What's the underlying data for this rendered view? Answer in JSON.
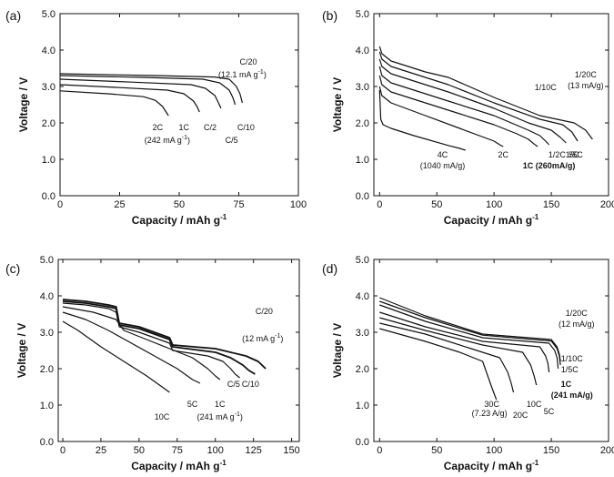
{
  "chart_data": [
    {
      "panel": "(a)",
      "type": "line",
      "xlabel": "Capacity / mAh g",
      "xlabel_sup": "-1",
      "ylabel": "Voltage / V",
      "xlim": [
        0,
        100
      ],
      "ylim": [
        0,
        5
      ],
      "xticks": [
        0,
        25,
        50,
        75,
        100
      ],
      "yticks": [
        0.0,
        1.0,
        2.0,
        3.0,
        4.0,
        5.0
      ],
      "series": [
        {
          "x": [
            0,
            40,
            65,
            71,
            74,
            75.5,
            76.5
          ],
          "y": [
            3.35,
            3.3,
            3.26,
            3.2,
            3.0,
            2.8,
            2.55
          ]
        },
        {
          "x": [
            0,
            35,
            60,
            67,
            71,
            72.5,
            73.5
          ],
          "y": [
            3.3,
            3.25,
            3.2,
            3.1,
            2.9,
            2.7,
            2.5
          ]
        },
        {
          "x": [
            0,
            30,
            55,
            61,
            65,
            66.5,
            67.5
          ],
          "y": [
            3.2,
            3.12,
            3.05,
            2.95,
            2.75,
            2.55,
            2.4
          ]
        },
        {
          "x": [
            0,
            25,
            45,
            52,
            56,
            57.5,
            58.5
          ],
          "y": [
            3.05,
            2.97,
            2.9,
            2.8,
            2.6,
            2.45,
            2.3
          ]
        },
        {
          "x": [
            0,
            20,
            35,
            40,
            43,
            44.5,
            45.5
          ],
          "y": [
            2.88,
            2.8,
            2.72,
            2.62,
            2.45,
            2.3,
            2.2
          ]
        }
      ],
      "annotations": [
        {
          "text": "C/20",
          "x": 79,
          "y": 3.6
        },
        {
          "text": "(12.1 mA g",
          "sup": "-1",
          "tail": ")",
          "x": 76.5,
          "y": 3.25
        },
        {
          "text": "2C",
          "x": 41,
          "y": 1.8
        },
        {
          "text": "1C",
          "x": 52,
          "y": 1.8
        },
        {
          "text": "(242 mA g",
          "sup": "-1",
          "tail": ")",
          "x": 45,
          "y": 1.45
        },
        {
          "text": "C/2",
          "x": 63,
          "y": 1.8
        },
        {
          "text": "C/5",
          "x": 72,
          "y": 1.45
        },
        {
          "text": "C/10",
          "x": 78,
          "y": 1.8
        }
      ]
    },
    {
      "panel": "(b)",
      "type": "line",
      "xlabel": "Capacity / mAh g",
      "xlabel_sup": "-1",
      "ylabel": "Voltage / V",
      "xlim": [
        -5,
        200
      ],
      "ylim": [
        0,
        5
      ],
      "xticks": [
        0,
        50,
        100,
        150,
        200
      ],
      "yticks": [
        0.0,
        1.0,
        2.0,
        3.0,
        4.0,
        5.0
      ],
      "series": [
        {
          "x": [
            0,
            2,
            10,
            40,
            60,
            100,
            140,
            170,
            180,
            186
          ],
          "y": [
            4.1,
            3.9,
            3.7,
            3.4,
            3.25,
            2.7,
            2.2,
            2.0,
            1.8,
            1.55
          ]
        },
        {
          "x": [
            0,
            2,
            10,
            40,
            60,
            100,
            140,
            160,
            168,
            173
          ],
          "y": [
            3.95,
            3.75,
            3.55,
            3.25,
            3.05,
            2.55,
            2.1,
            1.95,
            1.75,
            1.5
          ]
        },
        {
          "x": [
            0,
            2,
            10,
            40,
            60,
            100,
            130,
            150,
            158,
            163
          ],
          "y": [
            3.75,
            3.55,
            3.35,
            3.05,
            2.85,
            2.4,
            2.0,
            1.8,
            1.6,
            1.45
          ]
        },
        {
          "x": [
            0,
            2,
            10,
            40,
            60,
            100,
            130,
            140,
            145,
            148
          ],
          "y": [
            3.55,
            3.3,
            3.1,
            2.8,
            2.6,
            2.2,
            1.8,
            1.65,
            1.5,
            1.4
          ]
        },
        {
          "x": [
            0,
            2,
            10,
            40,
            70,
            100,
            120,
            130,
            135,
            138
          ],
          "y": [
            3.3,
            3.05,
            2.85,
            2.55,
            2.25,
            1.95,
            1.7,
            1.55,
            1.42,
            1.35
          ]
        },
        {
          "x": [
            0,
            2,
            10,
            40,
            70,
            100,
            105,
            108
          ],
          "y": [
            3.0,
            2.75,
            2.55,
            2.2,
            1.85,
            1.5,
            1.4,
            1.35
          ]
        },
        {
          "x": [
            0,
            1,
            3,
            10,
            30,
            60,
            70,
            75
          ],
          "y": [
            2.9,
            2.1,
            1.95,
            1.85,
            1.65,
            1.38,
            1.3,
            1.25
          ]
        }
      ],
      "annotations": [
        {
          "text": "1/10C",
          "x": 145,
          "y": 2.9
        },
        {
          "text": "1/20C",
          "x": 180,
          "y": 3.25
        },
        {
          "text": "(13 mA/g)",
          "x": 180,
          "y": 2.95
        },
        {
          "text": "4C",
          "x": 55,
          "y": 1.05
        },
        {
          "text": "(1040 mA/g)",
          "x": 55,
          "y": 0.75
        },
        {
          "text": "2C",
          "x": 108,
          "y": 1.05
        },
        {
          "text": "1C (260mA/g)",
          "x": 148,
          "y": 0.75,
          "bold": true
        },
        {
          "text": "1/2C",
          "x": 155,
          "y": 1.05
        },
        {
          "text": "1/5C",
          "x": 170,
          "y": 1.05
        },
        {
          "text": "5C",
          "x": 170,
          "y": 1.05
        }
      ]
    },
    {
      "panel": "(c)",
      "type": "line",
      "xlabel": "Capacity / mAh g",
      "xlabel_sup": "-1",
      "ylabel": "Voltage / V",
      "xlim": [
        -3,
        155
      ],
      "ylim": [
        0,
        5
      ],
      "xticks": [
        0,
        25,
        50,
        75,
        100,
        125,
        150
      ],
      "yticks": [
        0.0,
        1.0,
        2.0,
        3.0,
        4.0,
        5.0
      ],
      "series": [
        {
          "x": [
            0,
            15,
            30,
            35,
            37,
            50,
            60,
            70,
            72,
            100,
            110,
            120,
            128,
            133
          ],
          "y": [
            3.9,
            3.85,
            3.75,
            3.7,
            3.25,
            3.15,
            3.0,
            2.85,
            2.65,
            2.55,
            2.45,
            2.35,
            2.2,
            2.0
          ]
        },
        {
          "x": [
            0,
            15,
            30,
            35,
            37,
            50,
            60,
            70,
            72,
            100,
            110,
            118,
            122,
            126
          ],
          "y": [
            3.85,
            3.8,
            3.7,
            3.65,
            3.2,
            3.1,
            2.95,
            2.8,
            2.6,
            2.45,
            2.3,
            2.1,
            1.95,
            1.85
          ]
        },
        {
          "x": [
            0,
            15,
            30,
            35,
            37,
            50,
            60,
            70,
            72,
            95,
            105,
            110,
            113,
            116
          ],
          "y": [
            3.8,
            3.75,
            3.65,
            3.55,
            3.15,
            3.0,
            2.85,
            2.7,
            2.5,
            2.35,
            2.2,
            2.0,
            1.85,
            1.75
          ]
        },
        {
          "x": [
            0,
            20,
            35,
            40,
            55,
            70,
            85,
            95,
            100,
            103
          ],
          "y": [
            3.7,
            3.55,
            3.35,
            3.05,
            2.8,
            2.55,
            2.3,
            2.0,
            1.8,
            1.7
          ]
        },
        {
          "x": [
            0,
            15,
            30,
            45,
            60,
            75,
            85,
            90
          ],
          "y": [
            3.55,
            3.35,
            3.05,
            2.7,
            2.35,
            2.0,
            1.7,
            1.6
          ]
        },
        {
          "x": [
            0,
            10,
            25,
            40,
            55,
            65,
            70
          ],
          "y": [
            3.3,
            3.05,
            2.6,
            2.2,
            1.8,
            1.5,
            1.35
          ]
        }
      ],
      "annotations": [
        {
          "text": "C/20",
          "x": 132,
          "y": 3.5
        },
        {
          "text": "(12 mA g",
          "sup": "-1",
          "tail": ")",
          "x": 131,
          "y": 2.75
        },
        {
          "text": "10C",
          "x": 65,
          "y": 0.6
        },
        {
          "text": "5C",
          "x": 85,
          "y": 0.95
        },
        {
          "text": "1C",
          "x": 103,
          "y": 0.95
        },
        {
          "text": "(241 mA g",
          "sup": "-1",
          "tail": ")",
          "x": 103,
          "y": 0.6
        },
        {
          "text": "C/5",
          "x": 112,
          "y": 1.5
        },
        {
          "text": "C/10",
          "x": 123,
          "y": 1.5
        }
      ]
    },
    {
      "panel": "(d)",
      "type": "line",
      "xlabel": "Capacity / mAh g",
      "xlabel_sup": "-1",
      "ylabel": "Voltage / V",
      "xlim": [
        -5,
        200
      ],
      "ylim": [
        0,
        5
      ],
      "xticks": [
        0,
        50,
        100,
        150,
        200
      ],
      "yticks": [
        0.0,
        1.0,
        2.0,
        3.0,
        4.0,
        5.0
      ],
      "series": [
        {
          "x": [
            0,
            40,
            90,
            150,
            155,
            157,
            158
          ],
          "y": [
            3.95,
            3.45,
            2.95,
            2.8,
            2.6,
            2.4,
            2.2
          ]
        },
        {
          "x": [
            0,
            40,
            90,
            150,
            155,
            157,
            158
          ],
          "y": [
            3.85,
            3.4,
            2.92,
            2.76,
            2.55,
            2.35,
            2.1
          ]
        },
        {
          "x": [
            0,
            40,
            90,
            148,
            153,
            155,
            156
          ],
          "y": [
            3.75,
            3.3,
            2.85,
            2.7,
            2.5,
            2.3,
            2.0
          ]
        },
        {
          "x": [
            0,
            40,
            90,
            140,
            145,
            147,
            148
          ],
          "y": [
            3.55,
            3.15,
            2.75,
            2.6,
            2.35,
            2.15,
            1.9
          ]
        },
        {
          "x": [
            0,
            40,
            90,
            125,
            132,
            135,
            137
          ],
          "y": [
            3.4,
            3.05,
            2.65,
            2.45,
            2.1,
            1.8,
            1.55
          ]
        },
        {
          "x": [
            0,
            40,
            80,
            105,
            112,
            115,
            117
          ],
          "y": [
            3.25,
            2.95,
            2.55,
            2.3,
            1.9,
            1.6,
            1.35
          ]
        },
        {
          "x": [
            0,
            40,
            70,
            90,
            95,
            99,
            102
          ],
          "y": [
            3.1,
            2.75,
            2.45,
            2.2,
            1.75,
            1.4,
            1.15
          ]
        }
      ],
      "annotations": [
        {
          "text": "1/20C",
          "x": 172,
          "y": 3.45
        },
        {
          "text": "(12 mA/g)",
          "x": 172,
          "y": 3.15
        },
        {
          "text": "1/10C",
          "x": 168,
          "y": 2.2
        },
        {
          "text": "1/5C",
          "x": 166,
          "y": 1.9
        },
        {
          "text": "1C",
          "x": 163,
          "y": 1.5,
          "bold": true
        },
        {
          "text": "(241 mA/g)",
          "x": 168,
          "y": 1.2,
          "bold": true
        },
        {
          "text": "30C",
          "x": 98,
          "y": 0.95
        },
        {
          "text": "(7.23 A/g)",
          "x": 96,
          "y": 0.7
        },
        {
          "text": "20C",
          "x": 123,
          "y": 0.65
        },
        {
          "text": "10C",
          "x": 135,
          "y": 0.95
        },
        {
          "text": "5C",
          "x": 148,
          "y": 0.75
        }
      ]
    }
  ]
}
